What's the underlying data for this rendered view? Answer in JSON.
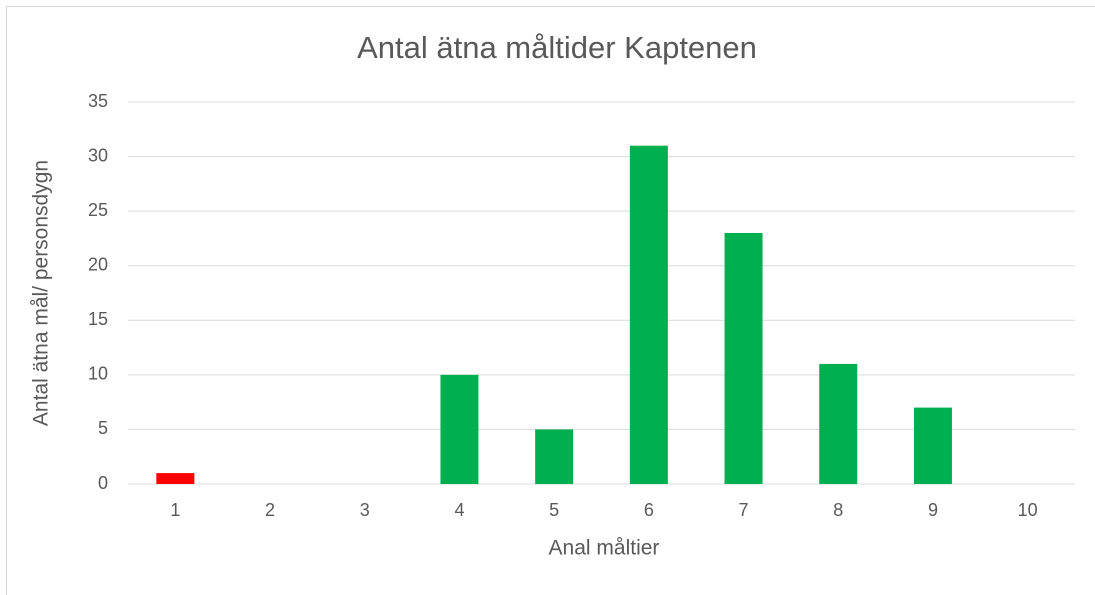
{
  "chart_data": {
    "type": "bar",
    "title": "Antal ätna måltider Kaptenen",
    "x_label": "Anal måltier",
    "y_label": "Antal ätna mål/ personsdygn",
    "categories": [
      "1",
      "2",
      "3",
      "4",
      "5",
      "6",
      "7",
      "8",
      "9",
      "10"
    ],
    "values": [
      1,
      0,
      0,
      10,
      5,
      31,
      23,
      11,
      7,
      0
    ],
    "colors": [
      "#ff0000",
      "#00b050",
      "#00b050",
      "#00b050",
      "#00b050",
      "#00b050",
      "#00b050",
      "#00b050",
      "#00b050",
      "#00b050"
    ],
    "ylim": [
      0,
      35
    ],
    "yticks": [
      0,
      5,
      10,
      15,
      20,
      25,
      30,
      35
    ],
    "grid": true
  }
}
